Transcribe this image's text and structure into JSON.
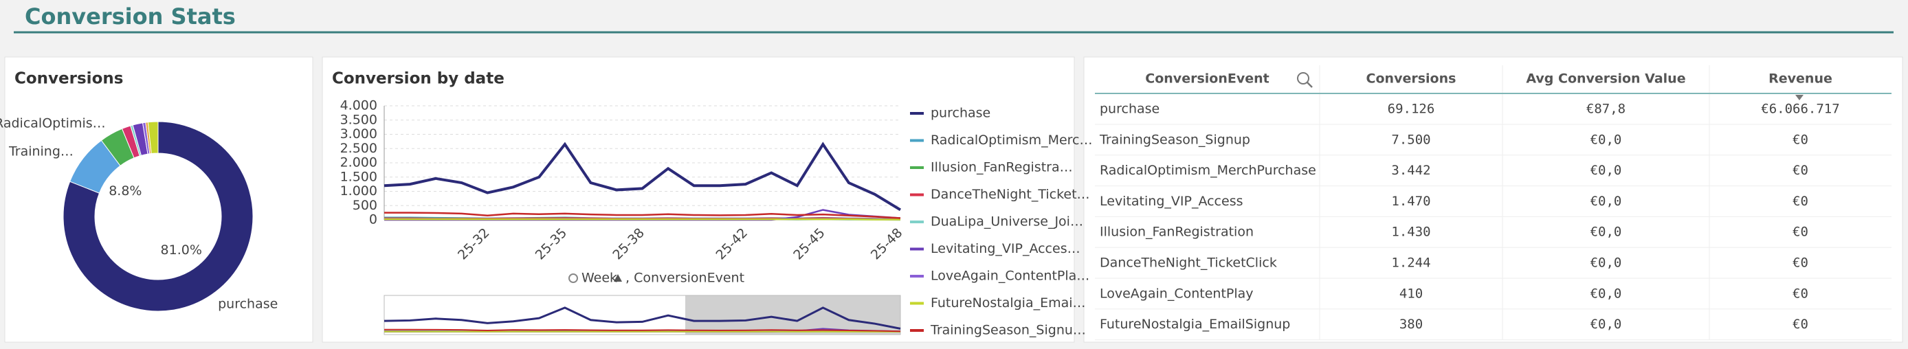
{
  "header": {
    "title": "Conversion Stats"
  },
  "chart_data": [
    {
      "type": "pie",
      "title": "Conversions",
      "categories": [
        "purchase",
        "Training…",
        "RadicalOptimis…",
        null,
        null,
        null,
        null,
        null,
        null
      ],
      "values": [
        81.0,
        8.8,
        4.0,
        1.5,
        0.4,
        1.7,
        0.5,
        0.4,
        1.7
      ],
      "value_labels": [
        "81.0%",
        "8.8%",
        null,
        null,
        null,
        null,
        null,
        null,
        null
      ],
      "colors": [
        "#2b2a78",
        "#5ba4e0",
        "#4caf50",
        "#d6336c",
        "#7fd1c9",
        "#6a3db8",
        "#8b5fd6",
        "#e8a33d",
        "#c5d62e"
      ]
    },
    {
      "type": "line",
      "title": "Conversion by date",
      "x_label": "Week",
      "x_label2": ", ConversionEvent",
      "categories": [
        null,
        null,
        null,
        null,
        "25-32",
        null,
        null,
        "25-35",
        null,
        null,
        "25-38",
        null,
        null,
        null,
        "25-42",
        null,
        null,
        "25-45",
        null,
        null,
        "25-48"
      ],
      "ylim": [
        0,
        4000
      ],
      "yticks": [
        0,
        {
          "value": 500,
          "label": "500"
        },
        {
          "value": 1000,
          "label": "1.000"
        },
        {
          "value": 1500,
          "label": "1.500"
        },
        {
          "value": 2000,
          "label": "2.000"
        },
        {
          "value": 2500,
          "label": "2.500"
        },
        {
          "value": 3000,
          "label": "3.000"
        },
        {
          "value": 3500,
          "label": "3.500"
        },
        {
          "value": 4000,
          "label": "4.000"
        }
      ],
      "grid": true,
      "series": [
        {
          "name": "purchase",
          "color": "#2b2a78",
          "values": [
            1200,
            1250,
            1450,
            1300,
            950,
            1150,
            1500,
            2650,
            1300,
            1050,
            1100,
            1800,
            1200,
            1200,
            1250,
            1650,
            1200,
            2650,
            1300,
            900,
            350
          ]
        },
        {
          "name": "RadicalOptimism_Merc…",
          "color": "#4aa3c4",
          "values": [
            80,
            80,
            70,
            60,
            50,
            60,
            70,
            80,
            60,
            50,
            50,
            60,
            50,
            50,
            50,
            60,
            50,
            70,
            50,
            40,
            20
          ]
        },
        {
          "name": "Illusion_FanRegistra…",
          "color": "#4caf50",
          "values": [
            60,
            60,
            50,
            50,
            40,
            50,
            60,
            70,
            50,
            40,
            40,
            50,
            40,
            40,
            40,
            50,
            40,
            60,
            40,
            30,
            10
          ]
        },
        {
          "name": "DanceTheNight_Ticket…",
          "color": "#d9334a",
          "values": [
            50,
            50,
            40,
            40,
            40,
            50,
            50,
            60,
            50,
            40,
            40,
            50,
            40,
            40,
            40,
            50,
            40,
            60,
            40,
            30,
            10
          ]
        },
        {
          "name": "DuaLipa_Universe_Joi…",
          "color": "#7fd1c9",
          "values": [
            20,
            20,
            20,
            20,
            10,
            20,
            20,
            20,
            10,
            10,
            10,
            20,
            10,
            10,
            10,
            20,
            10,
            20,
            10,
            10,
            0
          ]
        },
        {
          "name": "Levitating_VIP_Acces…",
          "color": "#6a3db8",
          "values": [
            0,
            0,
            0,
            0,
            0,
            0,
            0,
            0,
            0,
            0,
            0,
            0,
            0,
            0,
            0,
            0,
            100,
            350,
            180,
            120,
            60
          ]
        },
        {
          "name": "LoveAgain_ContentPla…",
          "color": "#8b5fd6",
          "values": [
            30,
            30,
            30,
            20,
            20,
            20,
            20,
            30,
            20,
            20,
            20,
            20,
            20,
            20,
            20,
            20,
            20,
            30,
            20,
            20,
            10
          ]
        },
        {
          "name": "FutureNostalgia_Emai…",
          "color": "#c5d62e",
          "values": [
            20,
            20,
            20,
            20,
            20,
            20,
            20,
            20,
            20,
            20,
            20,
            20,
            20,
            20,
            20,
            20,
            20,
            20,
            20,
            10,
            10
          ]
        },
        {
          "name": "TrainingSeason_Signu…",
          "color": "#c62828",
          "values": [
            250,
            250,
            240,
            220,
            150,
            220,
            200,
            220,
            190,
            170,
            170,
            200,
            170,
            160,
            170,
            210,
            170,
            190,
            150,
            110,
            60
          ]
        }
      ]
    }
  ],
  "table": {
    "columns": [
      "ConversionEvent",
      "Conversions",
      "Avg Conversion Value",
      "Revenue"
    ],
    "rows": [
      [
        "purchase",
        "69.126",
        "€87,8",
        "€6.066.717"
      ],
      [
        "TrainingSeason_Signup",
        "7.500",
        "€0,0",
        "€0"
      ],
      [
        "RadicalOptimism_MerchPurchase",
        "3.442",
        "€0,0",
        "€0"
      ],
      [
        "Levitating_VIP_Access",
        "1.470",
        "€0,0",
        "€0"
      ],
      [
        "Illusion_FanRegistration",
        "1.430",
        "€0,0",
        "€0"
      ],
      [
        "DanceTheNight_TicketClick",
        "1.244",
        "€0,0",
        "€0"
      ],
      [
        "LoveAgain_ContentPlay",
        "410",
        "€0,0",
        "€0"
      ],
      [
        "FutureNostalgia_EmailSignup",
        "380",
        "€0,0",
        "€0"
      ]
    ]
  }
}
